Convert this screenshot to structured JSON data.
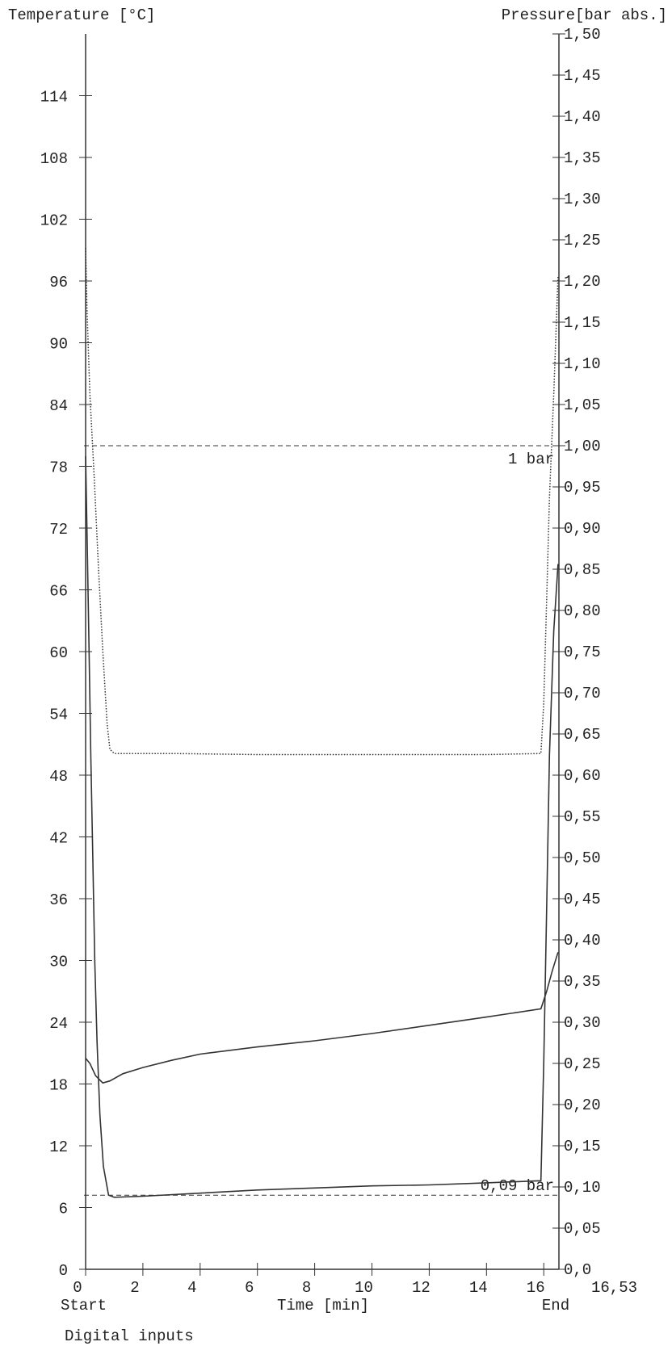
{
  "chart_data": {
    "type": "line",
    "xlabel": "Time [min]",
    "ylabel_left": "Temperature [°C]",
    "ylabel_right": "Pressure[bar abs.]",
    "xlim": [
      0,
      16.53
    ],
    "ylim_left": [
      0,
      120
    ],
    "ylim_right": [
      0,
      1.5
    ],
    "x_ticks": [
      0,
      2,
      4,
      6,
      8,
      10,
      12,
      14,
      16
    ],
    "x_tick_labels": [
      "0",
      "2",
      "4",
      "6",
      "8",
      "10",
      "12",
      "14",
      "16"
    ],
    "x_end_label": "16,53",
    "start_label": "Start",
    "end_label": "End",
    "footer": "Digital inputs",
    "y_left_ticks": [
      0,
      6,
      12,
      18,
      24,
      30,
      36,
      42,
      48,
      54,
      60,
      66,
      72,
      78,
      84,
      90,
      96,
      102,
      108,
      114
    ],
    "y_left_tick_labels": [
      "0",
      "6",
      "12",
      "18",
      "24",
      "30",
      "36",
      "42",
      "48",
      "54",
      "60",
      "66",
      "72",
      "78",
      "84",
      "90",
      "96",
      "102",
      "108",
      "114"
    ],
    "y_right_ticks": [
      0,
      0.05,
      0.1,
      0.15,
      0.2,
      0.25,
      0.3,
      0.35,
      0.4,
      0.45,
      0.5,
      0.55,
      0.6,
      0.65,
      0.7,
      0.75,
      0.8,
      0.85,
      0.9,
      0.95,
      1.0,
      1.05,
      1.1,
      1.15,
      1.2,
      1.25,
      1.3,
      1.35,
      1.4,
      1.45,
      1.5
    ],
    "y_right_tick_labels": [
      "0,0",
      "0,05",
      "0,10",
      "0,15",
      "0,20",
      "0,25",
      "0,30",
      "0,35",
      "0,40",
      "0,45",
      "0,50",
      "0,55",
      "0,60",
      "0,65",
      "0,70",
      "0,75",
      "0,80",
      "0,85",
      "0,90",
      "0,95",
      "1,00",
      "1,05",
      "1,10",
      "1,15",
      "1,20",
      "1,25",
      "1,30",
      "1,35",
      "1,40",
      "1,45",
      "1,50"
    ],
    "reference_lines": [
      {
        "axis": "right",
        "value": 1.0,
        "label": "1 bar"
      },
      {
        "axis": "right",
        "value": 0.09,
        "label": "0,09 bar"
      }
    ],
    "series": [
      {
        "axis": "left",
        "style": "dotted",
        "points": [
          [
            0,
            99.2
          ],
          [
            0.05,
            93
          ],
          [
            0.15,
            85
          ],
          [
            0.3,
            77
          ],
          [
            0.45,
            68
          ],
          [
            0.6,
            60
          ],
          [
            0.75,
            53
          ],
          [
            0.85,
            50.5
          ],
          [
            1.0,
            50.1
          ],
          [
            3,
            50.1
          ],
          [
            6,
            50.0
          ],
          [
            10,
            50.0
          ],
          [
            14,
            50.0
          ],
          [
            15.9,
            50.1
          ],
          [
            16.0,
            55
          ],
          [
            16.1,
            65
          ],
          [
            16.2,
            75
          ],
          [
            16.35,
            85
          ],
          [
            16.5,
            96.5
          ]
        ]
      },
      {
        "axis": "left",
        "style": "solid",
        "points": [
          [
            0,
            79
          ],
          [
            0.06,
            70
          ],
          [
            0.12,
            60
          ],
          [
            0.18,
            50
          ],
          [
            0.25,
            40
          ],
          [
            0.32,
            30
          ],
          [
            0.4,
            22
          ],
          [
            0.5,
            15
          ],
          [
            0.62,
            10
          ],
          [
            0.8,
            7.2
          ],
          [
            1.0,
            7.0
          ],
          [
            2,
            7.1
          ],
          [
            4,
            7.4
          ],
          [
            6,
            7.7
          ],
          [
            8,
            7.9
          ],
          [
            10,
            8.1
          ],
          [
            12,
            8.2
          ],
          [
            14,
            8.4
          ],
          [
            15.9,
            8.6
          ],
          [
            16.0,
            20
          ],
          [
            16.1,
            35
          ],
          [
            16.2,
            50
          ],
          [
            16.35,
            62
          ],
          [
            16.5,
            68.5
          ]
        ]
      },
      {
        "axis": "left",
        "style": "solid",
        "points": [
          [
            0,
            20.5
          ],
          [
            0.15,
            20
          ],
          [
            0.35,
            18.8
          ],
          [
            0.6,
            18.1
          ],
          [
            0.85,
            18.3
          ],
          [
            1.3,
            19.0
          ],
          [
            2,
            19.6
          ],
          [
            3,
            20.3
          ],
          [
            4,
            20.9
          ],
          [
            6,
            21.6
          ],
          [
            8,
            22.2
          ],
          [
            10,
            22.9
          ],
          [
            12,
            23.7
          ],
          [
            14,
            24.5
          ],
          [
            15.9,
            25.3
          ],
          [
            16.1,
            27
          ],
          [
            16.3,
            29
          ],
          [
            16.5,
            30.8
          ]
        ]
      }
    ]
  }
}
